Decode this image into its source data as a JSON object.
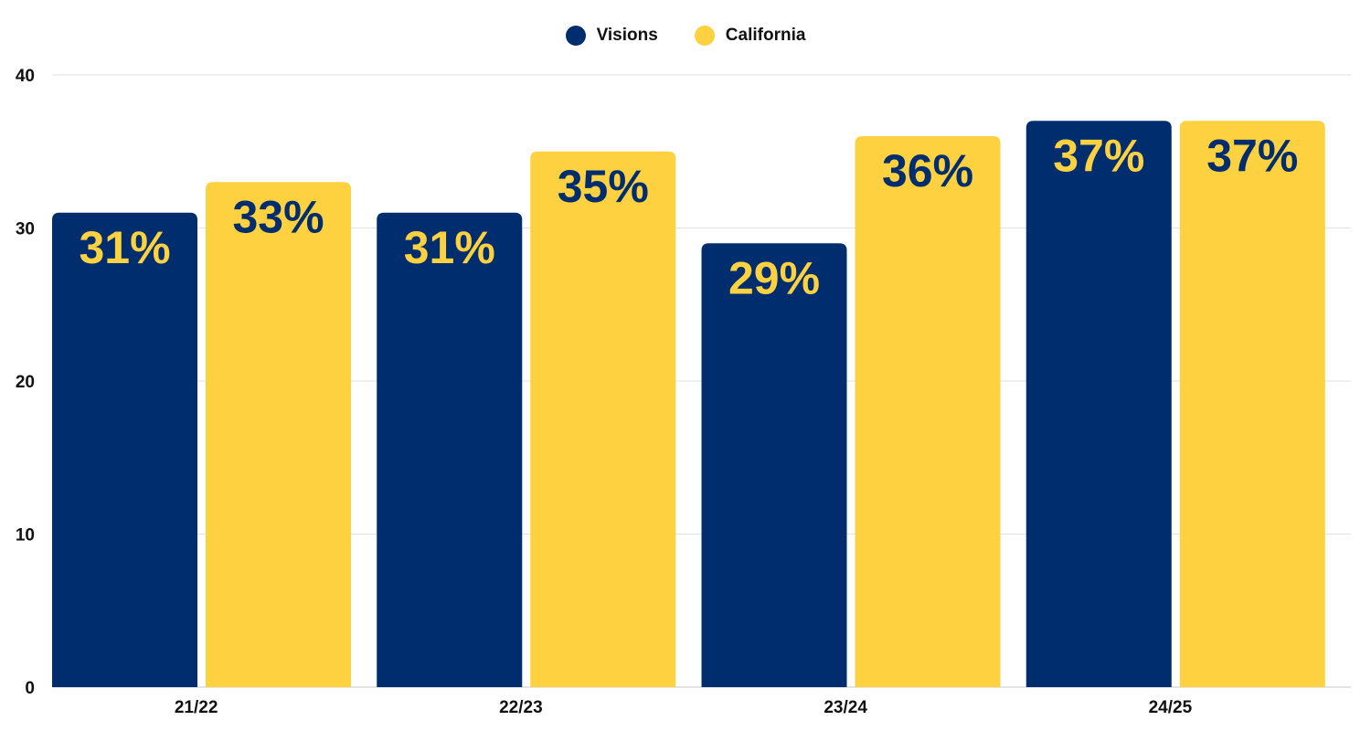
{
  "chart_data": {
    "type": "bar",
    "title": "",
    "xlabel": "",
    "ylabel": "",
    "categories": [
      "21/22",
      "22/23",
      "23/24",
      "24/25"
    ],
    "series": [
      {
        "name": "Visions",
        "color": "#002D6E",
        "label_color": "#FDD13F",
        "values": [
          31,
          31,
          29,
          37
        ],
        "labels": [
          "31%",
          "31%",
          "29%",
          "37%"
        ]
      },
      {
        "name": "California",
        "color": "#FDD13F",
        "label_color": "#002D6E",
        "values": [
          33,
          35,
          36,
          37
        ],
        "labels": [
          "33%",
          "35%",
          "36%",
          "37%"
        ]
      }
    ],
    "ylim": [
      0,
      40
    ],
    "yticks": [
      0,
      10,
      20,
      30,
      40
    ],
    "ytick_labels": [
      "0",
      "10",
      "20",
      "30",
      "40"
    ],
    "grid": true,
    "legend": "top-center"
  }
}
